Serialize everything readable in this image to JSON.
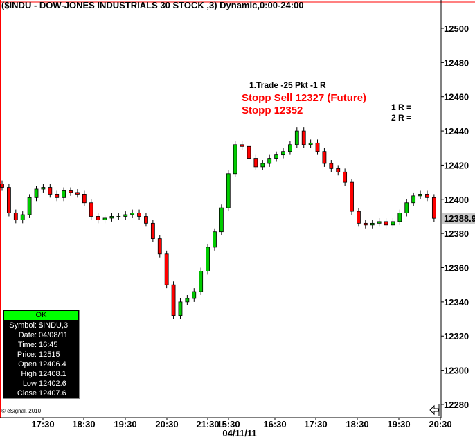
{
  "title": "($INDU - DOW-JONES INDUSTRIALS 30 STOCK ,3) Dynamic,0:00-24:00",
  "annotations": {
    "trade": "1.Trade -25 Pkt -1 R",
    "stop_sell": "Stopp Sell 12327 (Future)",
    "stop": "Stopp 12352",
    "r1": "1 R =",
    "r2": "2 R ="
  },
  "info_box": {
    "header": "OK",
    "rows": [
      {
        "k": "Symbol:",
        "v": "$INDU,3"
      },
      {
        "k": "Date:",
        "v": "04/08/11"
      },
      {
        "k": "Time:",
        "v": "16:45"
      },
      {
        "k": "Price:",
        "v": "12515"
      },
      {
        "k": "Open",
        "v": "12406.4"
      },
      {
        "k": "High",
        "v": "12408.1"
      },
      {
        "k": "Low",
        "v": "12402.6"
      },
      {
        "k": "Close",
        "v": "12407.6"
      }
    ]
  },
  "copyright": "© eSignal, 2010",
  "colors": {
    "up": "#00cc00",
    "down": "#ff0000",
    "accent": "#ff0000",
    "ok": "#00ff00"
  },
  "chart_data": {
    "type": "candlestick",
    "interval": "3 min",
    "ylim": [
      12280,
      12510
    ],
    "yticks": [
      12280,
      12300,
      12320,
      12340,
      12360,
      12380,
      12400,
      12420,
      12440,
      12460,
      12480,
      12500
    ],
    "last_price": "12388.9",
    "xticks": [
      "17:30",
      "18:30",
      "19:30",
      "20:30",
      "21:30",
      "15:30",
      "16:30",
      "17:30",
      "18:30",
      "19:30",
      "20:30"
    ],
    "date_label": "04/11/11",
    "first_open": 12409,
    "closes": [
      12407,
      12392,
      12388,
      12391,
      12401,
      12406,
      12407,
      12403,
      12401,
      12405,
      12404,
      12403,
      12398,
      12390,
      12388,
      12389,
      12390,
      12390,
      12391,
      12392,
      12390,
      12386,
      12377,
      12368,
      12350,
      12332,
      12340,
      12342,
      12346,
      12358,
      12372,
      12381,
      12395,
      12415,
      12432,
      12431,
      12424,
      12419,
      12421,
      12424,
      12426,
      12428,
      12432,
      12440,
      12432,
      12433,
      12428,
      12421,
      12418,
      12416,
      12410,
      12393,
      12386,
      12385,
      12386,
      12387,
      12385,
      12387,
      12392,
      12398,
      12402,
      12403,
      12401,
      12388.9
    ]
  }
}
